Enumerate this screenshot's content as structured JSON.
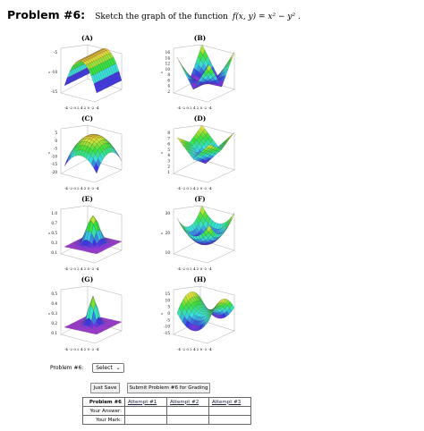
{
  "problem": {
    "title": "Problem #6:",
    "prompt": "Sketch the graph of the function",
    "function": "f(x, y) = x² − y² ."
  },
  "panels": [
    {
      "label": "(A)",
      "kind": "parabolic-cylinder-down",
      "ticks": [
        "-5",
        "-10",
        "-15"
      ],
      "axes": "-4 -2 0 2 4   2  0  -2  -4"
    },
    {
      "label": "(B)",
      "kind": "abs-peaks",
      "ticks": [
        "16",
        "14",
        "12",
        "10",
        "8",
        "6",
        "4",
        "2"
      ],
      "axes": "-4 -2 0 2 4   2  0  -2  -4"
    },
    {
      "label": "(C)",
      "kind": "paraboloid-down",
      "ticks": [
        "5",
        "0",
        "-5",
        "-10",
        "-15",
        "-20"
      ],
      "axes": "-4 -2 0 2 4   2  0  -2  -4"
    },
    {
      "label": "(D)",
      "kind": "v-shape",
      "ticks": [
        "8",
        "7",
        "6",
        "5",
        "4",
        "3",
        "2",
        "1"
      ],
      "axes": "-4 -2 0 2 4   2  0  -2  -4"
    },
    {
      "label": "(E)",
      "kind": "peak",
      "ticks": [
        "1.0",
        "0.7",
        "0.5",
        "0.3",
        "0.1"
      ],
      "axes": "-4 -2 0 2 4   2  0  -2  -4"
    },
    {
      "label": "(F)",
      "kind": "bowl",
      "ticks": [
        "30",
        "20",
        "10"
      ],
      "axes": "-4 -2 0 2 4   2  0  -2  -4"
    },
    {
      "label": "(G)",
      "kind": "peak-narrow",
      "ticks": [
        "0.5",
        "0.4",
        "0.3",
        "0.2",
        "0.1"
      ],
      "axes": "-4 -2 0 2 4   2  0  -2  -4"
    },
    {
      "label": "(H)",
      "kind": "saddle",
      "ticks": [
        "15",
        "10",
        "5",
        "0",
        "-5",
        "-10",
        "-15"
      ],
      "axes": "-4 -2 0 2 4   2  0  -2  -4"
    }
  ],
  "answer": {
    "label": "Problem #6:",
    "selected": "Select"
  },
  "buttons": {
    "save": "Just Save",
    "submit": "Submit Problem #6 for Grading"
  },
  "results": {
    "header": "Problem #6",
    "attempts": [
      "Attempt #1",
      "Attempt #2",
      "Attempt #3"
    ],
    "rows": [
      "Your Answer:",
      "Your Mark:"
    ]
  }
}
